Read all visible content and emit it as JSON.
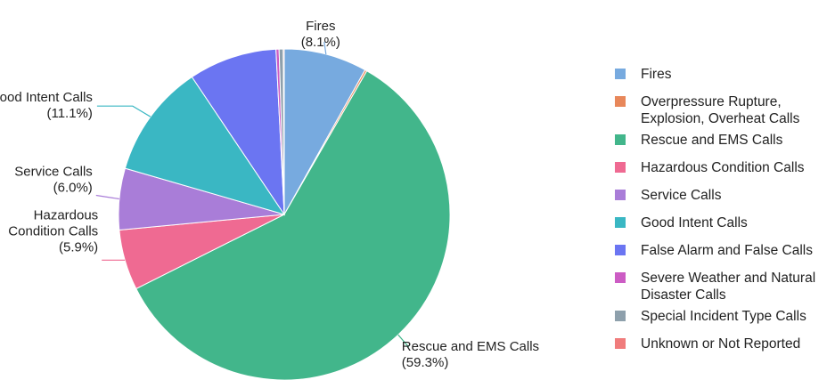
{
  "chart_data": {
    "type": "pie",
    "title": "",
    "legend_position": "right",
    "slices": [
      {
        "name": "Fires",
        "value": 8.1,
        "color": "#77AADF",
        "label": [
          "Fires",
          "(8.1%)"
        ]
      },
      {
        "name": "Overpressure Rupture, Explosion, Overheat Calls",
        "value": 0.2,
        "color": "#E8875A",
        "legend": [
          "Overpressure Rupture,",
          "Explosion, Overheat Calls"
        ]
      },
      {
        "name": "Rescue and EMS Calls",
        "value": 59.3,
        "color": "#42B68B",
        "label": [
          "Rescue and EMS Calls",
          "(59.3%)"
        ]
      },
      {
        "name": "Hazardous Condition Calls",
        "value": 5.9,
        "color": "#EF6A92",
        "label": [
          "Hazardous",
          "Condition Calls",
          "(5.9%)"
        ]
      },
      {
        "name": "Service Calls",
        "value": 6.0,
        "color": "#A97DD8",
        "label": [
          "Service Calls",
          "(6.0%)"
        ]
      },
      {
        "name": "Good Intent Calls",
        "value": 11.1,
        "color": "#3AB7C3",
        "label": [
          "Good Intent Calls",
          "(11.1%)"
        ]
      },
      {
        "name": "False Alarm and False Calls",
        "value": 8.6,
        "color": "#6B75F2",
        "legend": [
          "False Alarm and False Calls"
        ]
      },
      {
        "name": "Severe Weather and Natural Disaster Calls",
        "value": 0.3,
        "color": "#CC5CC4",
        "legend": [
          "Severe Weather and Natural",
          "Disaster Calls"
        ]
      },
      {
        "name": "Special Incident Type Calls",
        "value": 0.4,
        "color": "#8EA0AC",
        "legend": [
          "Special Incident Type Calls"
        ]
      },
      {
        "name": "Unknown or Not Reported",
        "value": 0.1,
        "color": "#F07C7C",
        "legend": [
          "Unknown or Not Reported"
        ]
      }
    ]
  }
}
